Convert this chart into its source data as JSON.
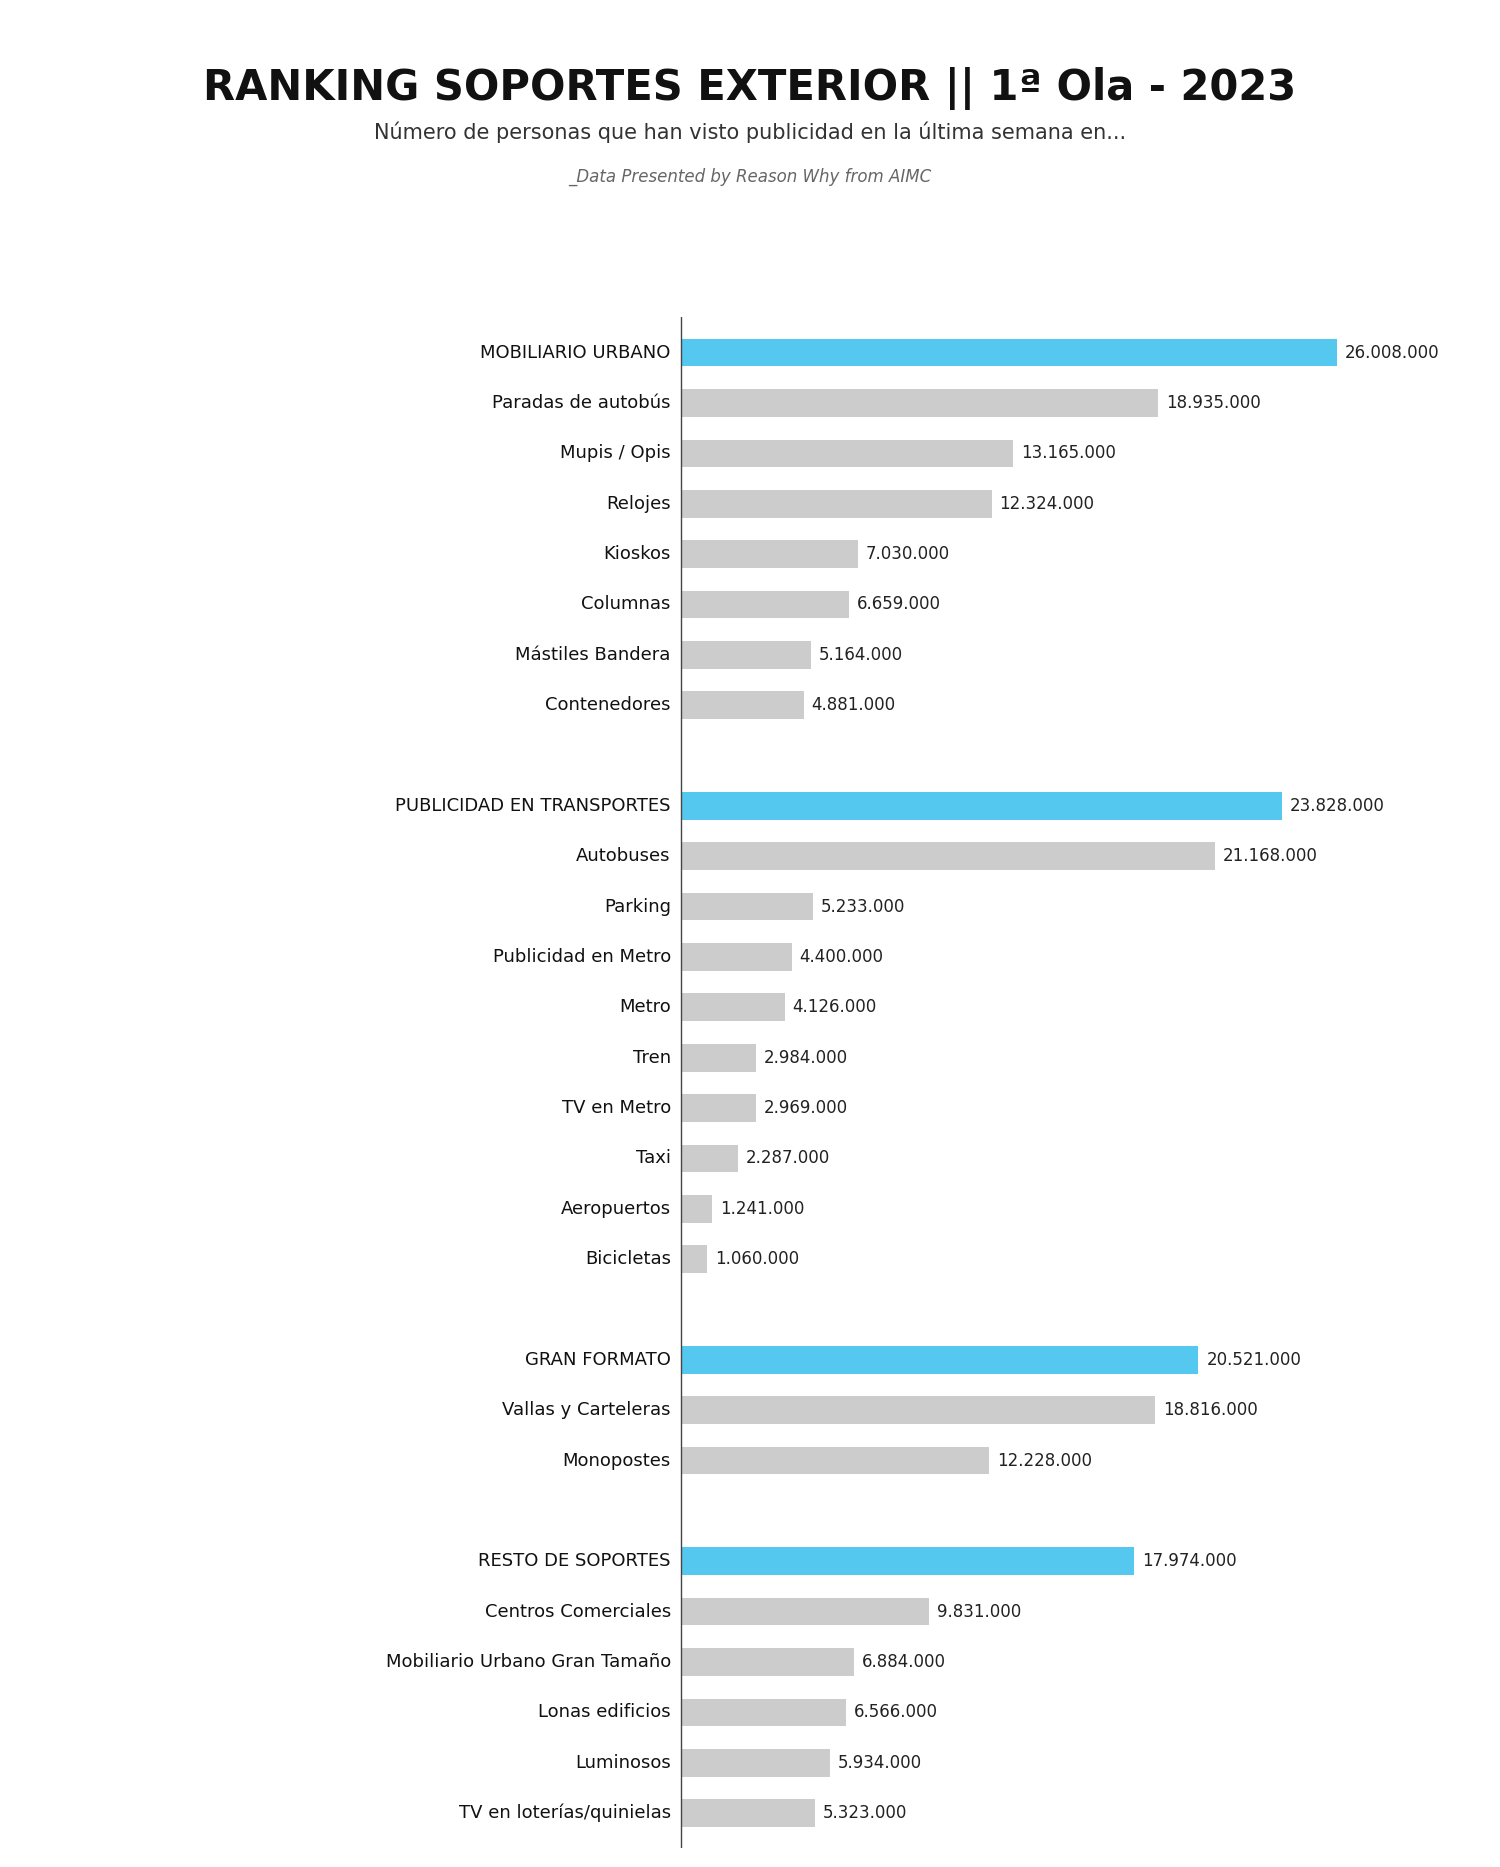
{
  "title": "RANKING SOPORTES EXTERIOR || 1ª Ola - 2023",
  "subtitle": "Número de personas que han visto publicidad en la última semana en...",
  "source": "_Data Presented by Reason Why from AIMC",
  "background_color": "#ffffff",
  "bar_color_highlight": "#55c8f0",
  "bar_color_normal": "#cccccc",
  "categories": [
    "MOBILIARIO URBANO",
    "Paradas de autobús",
    "Mupis / Opis",
    "Relojes",
    "Kioskos",
    "Columnas",
    "Mástiles Bandera",
    "Contenedores",
    "",
    "PUBLICIDAD EN TRANSPORTES",
    "Autobuses",
    "Parking",
    "Publicidad en Metro",
    "Metro",
    "Tren",
    "TV en Metro",
    "Taxi",
    "Aeropuertos",
    "Bicicletas",
    "",
    "GRAN FORMATO",
    "Vallas y Carteleras",
    "Monopostes",
    "",
    "RESTO DE SOPORTES",
    "Centros Comerciales",
    "Mobiliario Urbano Gran Tamaño",
    "Lonas edificios",
    "Luminosos",
    "TV en loterías/quinielas"
  ],
  "values": [
    26008000,
    18935000,
    13165000,
    12324000,
    7030000,
    6659000,
    5164000,
    4881000,
    0,
    23828000,
    21168000,
    5233000,
    4400000,
    4126000,
    2984000,
    2969000,
    2287000,
    1241000,
    1060000,
    0,
    20521000,
    18816000,
    12228000,
    0,
    17974000,
    9831000,
    6884000,
    6566000,
    5934000,
    5323000
  ],
  "is_header": [
    true,
    false,
    false,
    false,
    false,
    false,
    false,
    false,
    false,
    true,
    false,
    false,
    false,
    false,
    false,
    false,
    false,
    false,
    false,
    false,
    true,
    false,
    false,
    false,
    true,
    false,
    false,
    false,
    false,
    false
  ],
  "is_spacer": [
    false,
    false,
    false,
    false,
    false,
    false,
    false,
    false,
    true,
    false,
    false,
    false,
    false,
    false,
    false,
    false,
    false,
    false,
    false,
    true,
    false,
    false,
    false,
    true,
    false,
    false,
    false,
    false,
    false,
    false
  ],
  "value_labels": [
    "26.008.000",
    "18.935.000",
    "13.165.000",
    "12.324.000",
    "7.030.000",
    "6.659.000",
    "5.164.000",
    "4.881.000",
    "",
    "23.828.000",
    "21.168.000",
    "5.233.000",
    "4.400.000",
    "4.126.000",
    "2.984.000",
    "2.969.000",
    "2.287.000",
    "1.241.000",
    "1.060.000",
    "",
    "20.521.000",
    "18.816.000",
    "12.228.000",
    "",
    "17.974.000",
    "9.831.000",
    "6.884.000",
    "6.566.000",
    "5.934.000",
    "5.323.000"
  ],
  "title_fontsize": 30,
  "subtitle_fontsize": 15,
  "source_fontsize": 12,
  "label_fontsize": 13,
  "value_fontsize": 12,
  "bar_height": 0.55,
  "max_val": 26008000
}
